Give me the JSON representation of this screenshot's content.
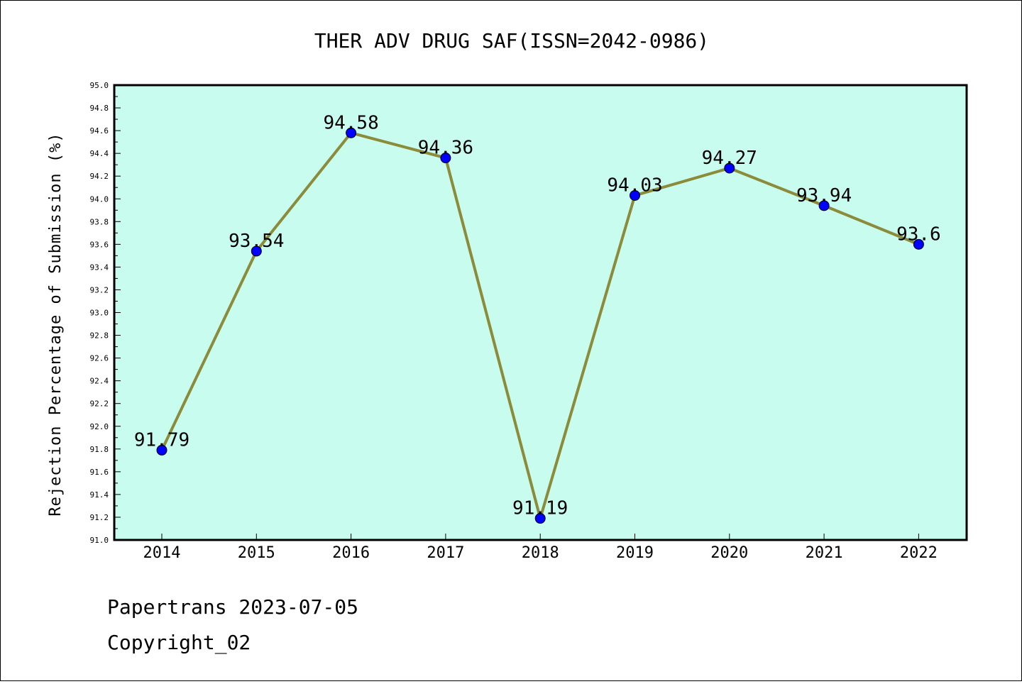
{
  "chart_data": {
    "type": "line",
    "title": "THER ADV DRUG SAF(ISSN=2042-0986)",
    "xlabel": "",
    "ylabel": "Rejection Percentage of Submission (%)",
    "categories": [
      "2014",
      "2015",
      "2016",
      "2017",
      "2018",
      "2019",
      "2020",
      "2021",
      "2022"
    ],
    "series": [
      {
        "values": [
          91.79,
          93.54,
          94.58,
          94.36,
          91.19,
          94.03,
          94.27,
          93.94,
          93.6
        ],
        "labels": [
          "91.79",
          "93.54",
          "94.58",
          "94.36",
          "91.19",
          "94.03",
          "94.27",
          "93.94",
          "93.6"
        ]
      }
    ],
    "ylim": [
      91.0,
      95.0
    ],
    "yticks": [
      "91.0",
      "91.2",
      "91.4",
      "91.6",
      "91.8",
      "92.0",
      "92.2",
      "92.4",
      "92.6",
      "92.8",
      "93.0",
      "93.2",
      "93.4",
      "93.6",
      "93.8",
      "94.0",
      "94.2",
      "94.4",
      "94.6",
      "94.8",
      "95.0"
    ],
    "grid": false,
    "colors": {
      "plot_background": "#c8fcee",
      "line": "#8b8b3a",
      "marker": "#0000ff"
    }
  },
  "footer": {
    "line1": "Papertrans 2023-07-05",
    "line2": "Copyright_02"
  }
}
